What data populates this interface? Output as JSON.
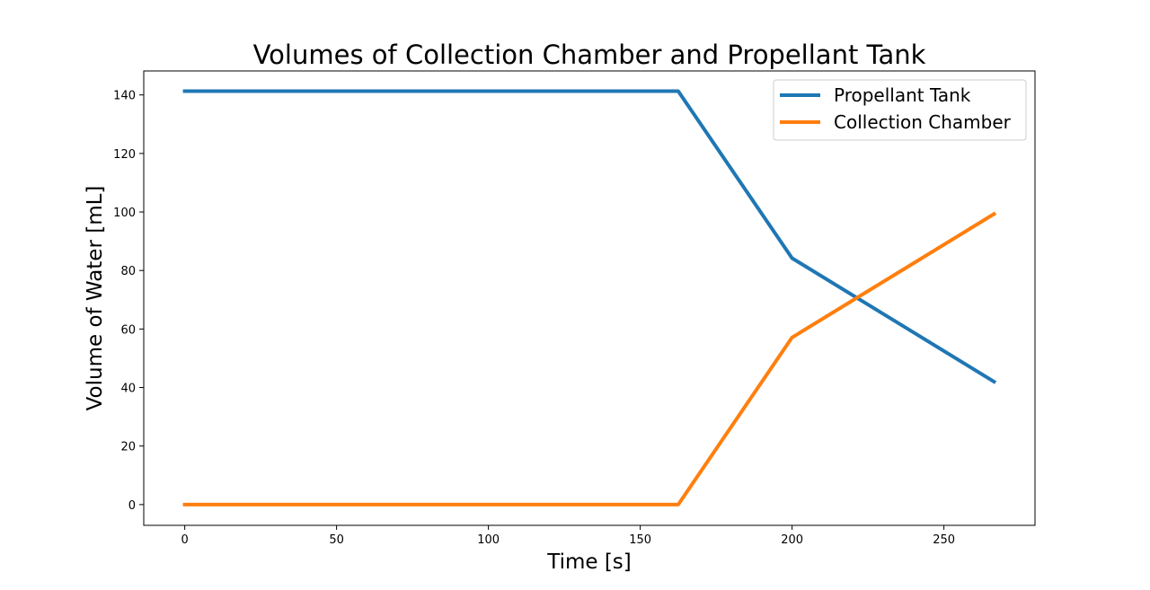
{
  "chart_data": {
    "type": "line",
    "title": "Volumes of Collection Chamber and Propellant Tank",
    "xlabel": "Time [s]",
    "ylabel": "Volume of Water [mL]",
    "xlim": [
      -13.5,
      280
    ],
    "ylim": [
      -7.1,
      148.2
    ],
    "xticks": [
      0,
      50,
      100,
      150,
      200,
      250
    ],
    "yticks": [
      0,
      20,
      40,
      60,
      80,
      100,
      120,
      140
    ],
    "xtick_labels": [
      "0",
      "50",
      "100",
      "150",
      "200",
      "250"
    ],
    "ytick_labels": [
      "0",
      "20",
      "40",
      "60",
      "80",
      "100",
      "120",
      "140"
    ],
    "grid": false,
    "legend_position": "top-right",
    "series": [
      {
        "name": "Propellant Tank",
        "color": "#1f77b4",
        "x": [
          0,
          162.5,
          200,
          266.5
        ],
        "y": [
          141.3,
          141.3,
          84.2,
          42.0
        ]
      },
      {
        "name": "Collection Chamber",
        "color": "#ff7f0e",
        "x": [
          0,
          162.5,
          200,
          266.5
        ],
        "y": [
          0,
          0,
          57.1,
          99.3
        ]
      }
    ]
  }
}
